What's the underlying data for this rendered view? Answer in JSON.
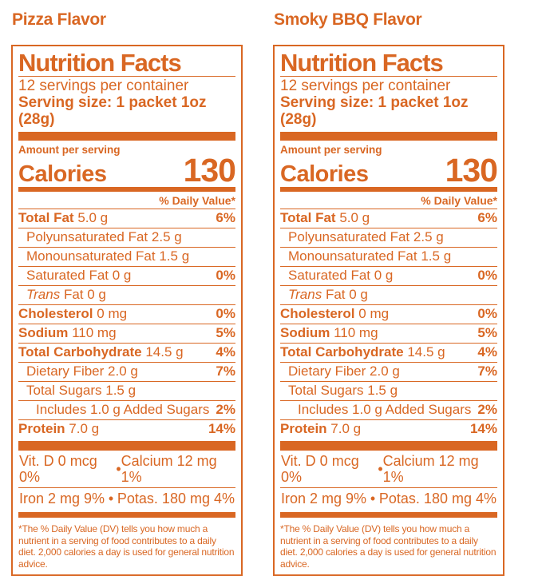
{
  "accent_color": "#D96723",
  "panels": [
    {
      "flavor_title": "Pizza Flavor",
      "title": "Nutrition Facts",
      "servings": "12 servings per container",
      "serving_size": "Serving size: 1 packet 1oz (28g)",
      "amount_per_serving": "Amount per serving",
      "calories_label": "Calories",
      "calories_value": "130",
      "daily_value_header": "% Daily Value*",
      "rows": [
        {
          "name": "Total Fat",
          "value": "5.0 g",
          "dv": "6%",
          "style": "bold",
          "indent": 0
        },
        {
          "name": "Polyunsaturated Fat",
          "value": "2.5 g",
          "dv": "",
          "style": "regular",
          "indent": 1
        },
        {
          "name": "Monounsaturated Fat",
          "value": "1.5 g",
          "dv": "",
          "style": "regular",
          "indent": 1
        },
        {
          "name": "Saturated Fat",
          "value": "0 g",
          "dv": "0%",
          "style": "regular",
          "indent": 1
        },
        {
          "name": "Trans",
          "value": "Fat 0 g",
          "dv": "",
          "style": "italic",
          "indent": 1
        },
        {
          "name": "Cholesterol",
          "value": "0 mg",
          "dv": "0%",
          "style": "bold",
          "indent": 0
        },
        {
          "name": "Sodium",
          "value": "110 mg",
          "dv": "5%",
          "style": "bold",
          "indent": 0
        },
        {
          "name": "Total Carbohydrate",
          "value": "14.5 g",
          "dv": "4%",
          "style": "bold",
          "indent": 0
        },
        {
          "name": "Dietary Fiber",
          "value": "2.0 g",
          "dv": "7%",
          "style": "regular",
          "indent": 1
        },
        {
          "name": "Total Sugars",
          "value": "1.5 g",
          "dv": "",
          "style": "regular",
          "indent": 1
        },
        {
          "name": "Includes 1.0 g Added Sugars",
          "value": "",
          "dv": "2%",
          "style": "regular",
          "indent": 2
        },
        {
          "name": "Protein",
          "value": "7.0 g",
          "dv": "14%",
          "style": "bold",
          "indent": 0
        }
      ],
      "micro": {
        "l1_left": "Vit. D 0 mcg 0%",
        "l1_sep": "•",
        "l1_right": "Calcium 12 mg 1%",
        "l2_left": "Iron 2 mg 9%",
        "l2_sep": "•",
        "l2_right": "Potas. 180 mg 4%"
      },
      "footnote": "*The % Daily Value (DV) tells you how much a nutrient in a serving of food contributes to a daily diet.  2,000 calories a day is used for general nutrition advice."
    },
    {
      "flavor_title": "Smoky BBQ Flavor",
      "title": "Nutrition Facts",
      "servings": "12 servings per container",
      "serving_size": "Serving size: 1 packet 1oz (28g)",
      "amount_per_serving": "Amount per serving",
      "calories_label": "Calories",
      "calories_value": "130",
      "daily_value_header": "% Daily Value*",
      "rows": [
        {
          "name": "Total Fat",
          "value": "5.0 g",
          "dv": "6%",
          "style": "bold",
          "indent": 0
        },
        {
          "name": "Polyunsaturated Fat",
          "value": "2.5 g",
          "dv": "",
          "style": "regular",
          "indent": 1
        },
        {
          "name": "Monounsaturated Fat",
          "value": "1.5 g",
          "dv": "",
          "style": "regular",
          "indent": 1
        },
        {
          "name": "Saturated Fat",
          "value": "0 g",
          "dv": "0%",
          "style": "regular",
          "indent": 1
        },
        {
          "name": "Trans",
          "value": "Fat 0 g",
          "dv": "",
          "style": "italic",
          "indent": 1
        },
        {
          "name": "Cholesterol",
          "value": "0 mg",
          "dv": "0%",
          "style": "bold",
          "indent": 0
        },
        {
          "name": "Sodium",
          "value": "110 mg",
          "dv": "5%",
          "style": "bold",
          "indent": 0
        },
        {
          "name": "Total Carbohydrate",
          "value": "14.5 g",
          "dv": "4%",
          "style": "bold",
          "indent": 0
        },
        {
          "name": "Dietary Fiber",
          "value": "2.0 g",
          "dv": "7%",
          "style": "regular",
          "indent": 1
        },
        {
          "name": "Total Sugars",
          "value": "1.5 g",
          "dv": "",
          "style": "regular",
          "indent": 1
        },
        {
          "name": "Includes 1.0 g Added Sugars",
          "value": "",
          "dv": "2%",
          "style": "regular",
          "indent": 2
        },
        {
          "name": "Protein",
          "value": "7.0 g",
          "dv": "14%",
          "style": "bold",
          "indent": 0
        }
      ],
      "micro": {
        "l1_left": "Vit. D 0 mcg 0%",
        "l1_sep": "•",
        "l1_right": "Calcium 12 mg 1%",
        "l2_left": "Iron 2 mg 9%",
        "l2_sep": "•",
        "l2_right": "Potas. 180 mg 4%"
      },
      "footnote": "*The % Daily Value (DV) tells you how much a nutrient in a serving of food contributes to a daily diet.  2,000 calories a day is used for general nutrition advice."
    }
  ]
}
